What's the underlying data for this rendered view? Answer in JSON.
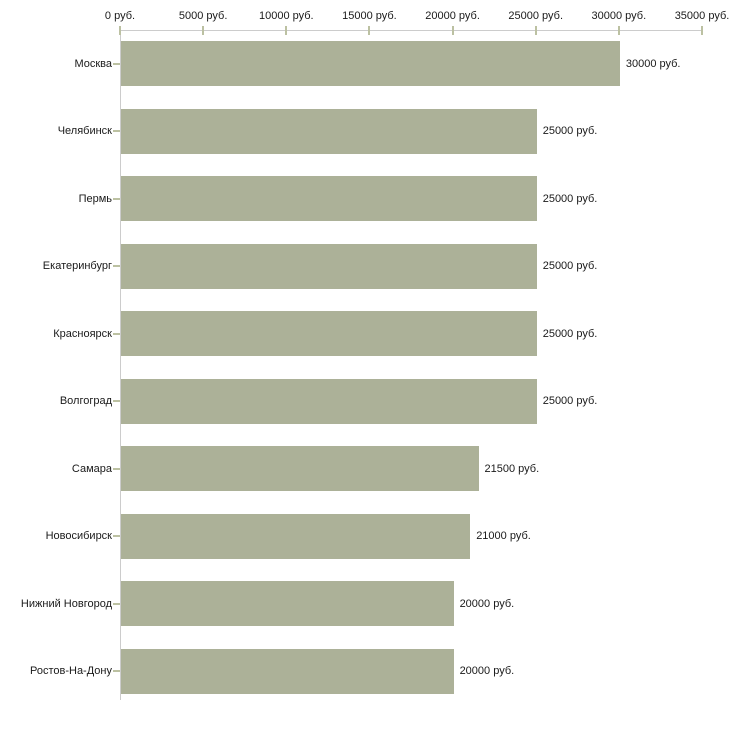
{
  "chart_data": {
    "type": "bar",
    "orientation": "horizontal",
    "title": "",
    "legend_position": "none",
    "grid": false,
    "categories": [
      "Москва",
      "Челябинск",
      "Пермь",
      "Екатеринбург",
      "Красноярск",
      "Волгоград",
      "Самара",
      "Новосибирск",
      "Нижний Новгород",
      "Ростов-На-Дону"
    ],
    "values": [
      30000,
      25000,
      25000,
      25000,
      25000,
      25000,
      21500,
      21000,
      20000,
      20000
    ],
    "value_labels": [
      "30000 руб.",
      "25000 руб.",
      "25000 руб.",
      "25000 руб.",
      "25000 руб.",
      "25000 руб.",
      "21500 руб.",
      "21000 руб.",
      "20000 руб.",
      "20000 руб."
    ],
    "x_axis": {
      "position": "top",
      "min": 0,
      "max": 35000,
      "tick_values": [
        0,
        5000,
        10000,
        15000,
        20000,
        25000,
        30000,
        35000
      ],
      "tick_labels": [
        "0 руб.",
        "5000 руб.",
        "10000 руб.",
        "15000 руб.",
        "20000 руб.",
        "25000 руб.",
        "30000 руб.",
        "35000 руб."
      ]
    },
    "colors": {
      "bar": "#acb198",
      "axis_line": "#cccccc",
      "tick_mark": "#bcc1a2",
      "text": "#1a1a1a",
      "background": "#ffffff"
    }
  }
}
